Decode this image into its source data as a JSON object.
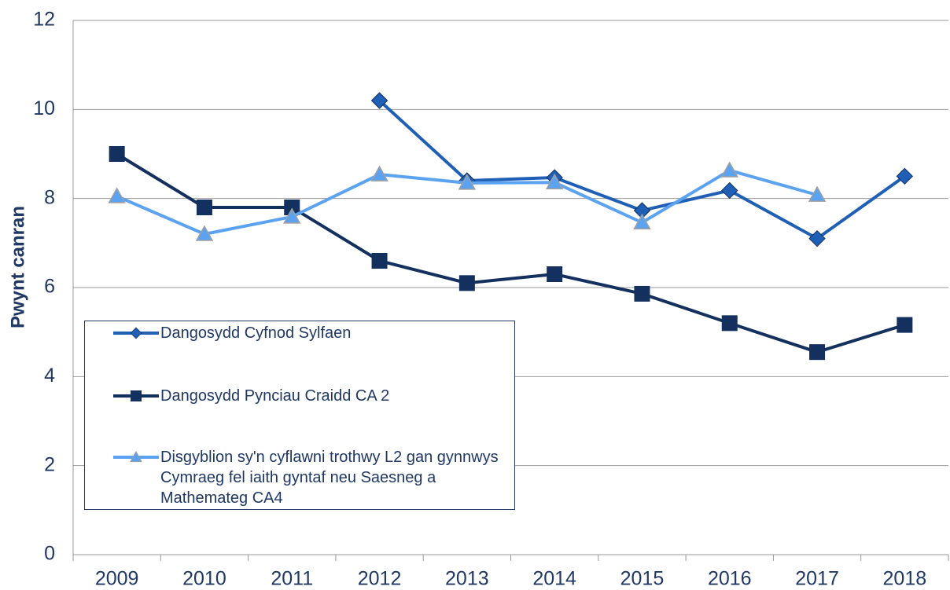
{
  "chart_data": {
    "type": "line",
    "y_label": "Pwynt canran",
    "categories": [
      "2009",
      "2010",
      "2011",
      "2012",
      "2013",
      "2014",
      "2015",
      "2016",
      "2017",
      "2018"
    ],
    "series": [
      {
        "name": "Dangosydd Cyfnod Sylfaen",
        "color": "#1f5fb5",
        "marker": "diamond",
        "values": [
          null,
          null,
          null,
          10.2,
          8.4,
          8.47,
          7.73,
          8.18,
          7.1,
          8.5
        ]
      },
      {
        "name": "Dangosydd Pynciau Craidd CA 2",
        "color": "#14305e",
        "marker": "square",
        "values": [
          9.0,
          7.8,
          7.8,
          6.6,
          6.1,
          6.3,
          5.86,
          5.2,
          4.55,
          5.16
        ]
      },
      {
        "name": "Disgyblion sy'n cyflawni trothwy L2 gan gynnwys Cymraeg fel iaith gyntaf neu Saesneg a Mathemateg CA4",
        "color": "#5ba3f0",
        "marker": "triangle",
        "values": [
          8.05,
          7.2,
          7.59,
          8.54,
          8.35,
          8.36,
          7.46,
          8.63,
          8.08,
          null
        ]
      }
    ],
    "ylim": [
      0,
      12
    ],
    "yticks": [
      0,
      2,
      4,
      6,
      8,
      10,
      12
    ],
    "grid": true
  }
}
